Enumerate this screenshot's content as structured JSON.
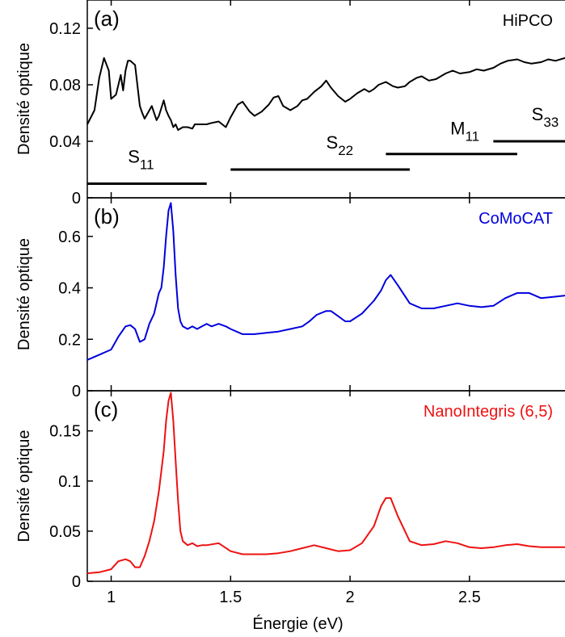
{
  "xlabel": "Énergie (eV)",
  "x_ticks": [
    1,
    1.5,
    2,
    2.5
  ],
  "x_tick_labels": [
    "1",
    "1.5",
    "2",
    "2.5"
  ],
  "chart_data": [
    {
      "type": "line",
      "panel": "(a)",
      "ylabel": "Densité optique",
      "xlim": [
        0.9,
        2.9
      ],
      "ylim": [
        0,
        0.14
      ],
      "y_ticks": [
        0,
        0.04,
        0.08,
        0.12
      ],
      "y_tick_labels": [
        "0",
        "0.04",
        "0.08",
        "0.12"
      ],
      "color": "#000000",
      "series": [
        {
          "name": "HiPCO",
          "x": [
            0.9,
            0.93,
            0.95,
            0.97,
            0.99,
            1.0,
            1.02,
            1.04,
            1.05,
            1.06,
            1.07,
            1.08,
            1.1,
            1.12,
            1.13,
            1.14,
            1.15,
            1.17,
            1.18,
            1.19,
            1.2,
            1.22,
            1.23,
            1.24,
            1.25,
            1.26,
            1.27,
            1.28,
            1.3,
            1.32,
            1.34,
            1.35,
            1.37,
            1.4,
            1.42,
            1.45,
            1.48,
            1.5,
            1.53,
            1.55,
            1.58,
            1.6,
            1.63,
            1.66,
            1.68,
            1.7,
            1.72,
            1.75,
            1.78,
            1.8,
            1.82,
            1.85,
            1.88,
            1.9,
            1.92,
            1.95,
            1.98,
            2.0,
            2.03,
            2.06,
            2.08,
            2.1,
            2.12,
            2.15,
            2.18,
            2.2,
            2.23,
            2.25,
            2.28,
            2.3,
            2.33,
            2.36,
            2.4,
            2.43,
            2.46,
            2.5,
            2.53,
            2.56,
            2.6,
            2.63,
            2.66,
            2.7,
            2.73,
            2.76,
            2.8,
            2.83,
            2.86,
            2.9
          ],
          "y": [
            0.052,
            0.062,
            0.085,
            0.099,
            0.09,
            0.07,
            0.073,
            0.087,
            0.076,
            0.09,
            0.097,
            0.097,
            0.094,
            0.065,
            0.06,
            0.056,
            0.059,
            0.065,
            0.06,
            0.055,
            0.058,
            0.069,
            0.062,
            0.058,
            0.055,
            0.05,
            0.052,
            0.048,
            0.05,
            0.05,
            0.049,
            0.052,
            0.052,
            0.052,
            0.053,
            0.054,
            0.05,
            0.057,
            0.066,
            0.068,
            0.061,
            0.058,
            0.061,
            0.066,
            0.071,
            0.072,
            0.065,
            0.062,
            0.065,
            0.069,
            0.07,
            0.075,
            0.079,
            0.083,
            0.078,
            0.072,
            0.068,
            0.07,
            0.074,
            0.077,
            0.075,
            0.077,
            0.08,
            0.082,
            0.079,
            0.078,
            0.079,
            0.082,
            0.085,
            0.086,
            0.083,
            0.084,
            0.088,
            0.09,
            0.088,
            0.089,
            0.091,
            0.09,
            0.092,
            0.095,
            0.097,
            0.098,
            0.096,
            0.095,
            0.096,
            0.098,
            0.097,
            0.099
          ]
        }
      ],
      "annotations": [
        {
          "base": "S",
          "sub": "11",
          "x_range": [
            0.9,
            1.4
          ],
          "y": 0.01,
          "label_x": 1.07,
          "label_y": 0.025
        },
        {
          "base": "S",
          "sub": "22",
          "x_range": [
            1.5,
            2.25
          ],
          "y": 0.02,
          "label_x": 1.9,
          "label_y": 0.035
        },
        {
          "base": "M",
          "sub": "11",
          "x_range": [
            2.15,
            2.7
          ],
          "y": 0.031,
          "label_x": 2.42,
          "label_y": 0.045
        },
        {
          "base": "S",
          "sub": "33",
          "x_range": [
            2.6,
            2.9
          ],
          "y": 0.04,
          "label_x": 2.76,
          "label_y": 0.055
        }
      ]
    },
    {
      "type": "line",
      "panel": "(b)",
      "ylabel": "Densité optique",
      "xlim": [
        0.9,
        2.9
      ],
      "ylim": [
        0,
        0.75
      ],
      "y_ticks": [
        0,
        0.2,
        0.4,
        0.6
      ],
      "y_tick_labels": [
        "0",
        "0.2",
        "0.4",
        "0.6"
      ],
      "color": "#0000dd",
      "series": [
        {
          "name": "CoMoCAT",
          "x": [
            0.9,
            0.95,
            1.0,
            1.03,
            1.06,
            1.08,
            1.1,
            1.12,
            1.14,
            1.16,
            1.18,
            1.2,
            1.21,
            1.22,
            1.23,
            1.24,
            1.25,
            1.26,
            1.27,
            1.28,
            1.29,
            1.3,
            1.32,
            1.34,
            1.36,
            1.38,
            1.4,
            1.42,
            1.45,
            1.48,
            1.5,
            1.55,
            1.6,
            1.65,
            1.7,
            1.75,
            1.8,
            1.83,
            1.86,
            1.9,
            1.92,
            1.95,
            1.98,
            2.0,
            2.05,
            2.1,
            2.13,
            2.15,
            2.17,
            2.2,
            2.25,
            2.3,
            2.35,
            2.4,
            2.45,
            2.5,
            2.55,
            2.6,
            2.65,
            2.7,
            2.75,
            2.8,
            2.85,
            2.9
          ],
          "y": [
            0.12,
            0.14,
            0.16,
            0.21,
            0.25,
            0.255,
            0.24,
            0.19,
            0.2,
            0.26,
            0.3,
            0.38,
            0.4,
            0.48,
            0.6,
            0.7,
            0.73,
            0.62,
            0.45,
            0.32,
            0.27,
            0.25,
            0.24,
            0.25,
            0.24,
            0.25,
            0.26,
            0.25,
            0.26,
            0.25,
            0.24,
            0.22,
            0.22,
            0.225,
            0.23,
            0.24,
            0.25,
            0.27,
            0.295,
            0.31,
            0.31,
            0.29,
            0.27,
            0.27,
            0.3,
            0.35,
            0.39,
            0.43,
            0.45,
            0.41,
            0.34,
            0.32,
            0.32,
            0.33,
            0.34,
            0.33,
            0.325,
            0.33,
            0.36,
            0.38,
            0.38,
            0.36,
            0.365,
            0.37
          ]
        }
      ]
    },
    {
      "type": "line",
      "panel": "(c)",
      "ylabel": "Densité optique",
      "xlim": [
        0.9,
        2.9
      ],
      "ylim": [
        0,
        0.19
      ],
      "y_ticks": [
        0,
        0.05,
        0.1,
        0.15
      ],
      "y_tick_labels": [
        "0",
        "0.05",
        "0.1",
        "0.15"
      ],
      "color": "#ee1111",
      "series": [
        {
          "name": "NanoIntegris (6,5)",
          "x": [
            0.9,
            0.95,
            1.0,
            1.03,
            1.06,
            1.08,
            1.1,
            1.12,
            1.14,
            1.16,
            1.18,
            1.2,
            1.21,
            1.22,
            1.23,
            1.24,
            1.25,
            1.26,
            1.27,
            1.28,
            1.29,
            1.3,
            1.32,
            1.34,
            1.36,
            1.38,
            1.4,
            1.45,
            1.5,
            1.55,
            1.6,
            1.65,
            1.7,
            1.75,
            1.8,
            1.85,
            1.9,
            1.95,
            2.0,
            2.05,
            2.1,
            2.13,
            2.15,
            2.17,
            2.2,
            2.25,
            2.3,
            2.35,
            2.4,
            2.45,
            2.5,
            2.55,
            2.6,
            2.65,
            2.7,
            2.75,
            2.8,
            2.85,
            2.9
          ],
          "y": [
            0.008,
            0.009,
            0.012,
            0.02,
            0.022,
            0.02,
            0.014,
            0.014,
            0.025,
            0.04,
            0.06,
            0.09,
            0.11,
            0.13,
            0.16,
            0.18,
            0.188,
            0.16,
            0.12,
            0.08,
            0.05,
            0.04,
            0.036,
            0.038,
            0.035,
            0.036,
            0.036,
            0.038,
            0.03,
            0.027,
            0.027,
            0.027,
            0.028,
            0.03,
            0.033,
            0.036,
            0.033,
            0.03,
            0.031,
            0.038,
            0.055,
            0.075,
            0.083,
            0.083,
            0.065,
            0.04,
            0.036,
            0.037,
            0.04,
            0.038,
            0.034,
            0.033,
            0.034,
            0.036,
            0.037,
            0.035,
            0.034,
            0.034,
            0.034
          ]
        }
      ]
    }
  ]
}
